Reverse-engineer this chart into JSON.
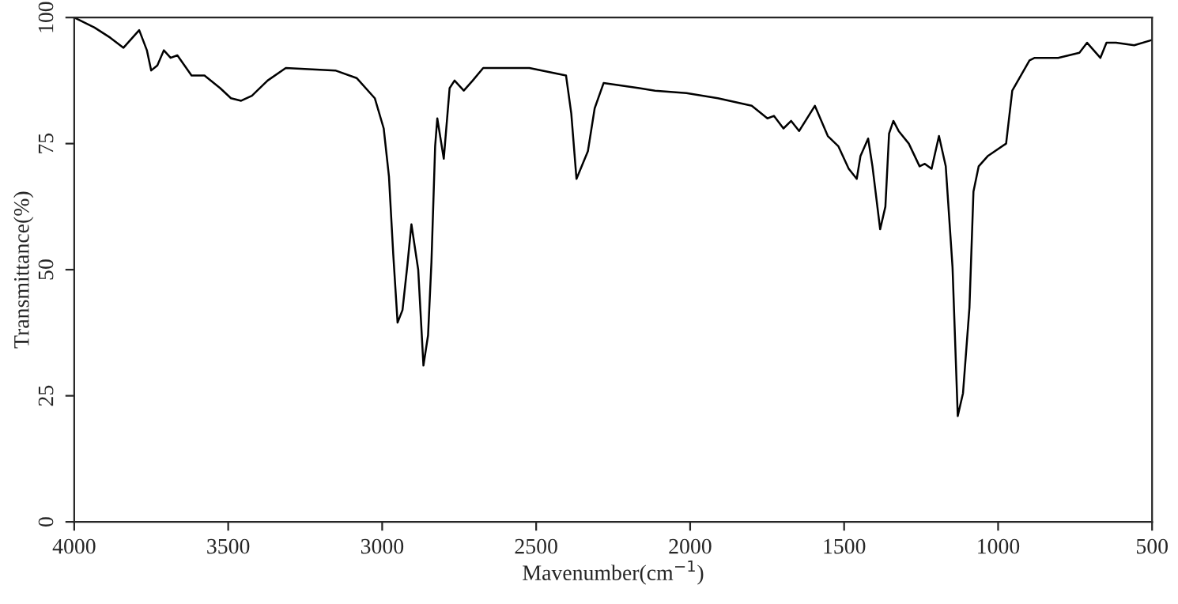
{
  "chart_data": {
    "type": "line",
    "xlabel": "Mavenumber(cm$^{−1}$)",
    "ylabel": "Transmittance(%)",
    "xlim": [
      4000,
      500
    ],
    "ylim": [
      0,
      100
    ],
    "xticks": [
      4000,
      3500,
      3000,
      2500,
      2000,
      1500,
      1000,
      500
    ],
    "yticks": [
      0,
      25,
      50,
      75,
      100
    ],
    "grid": false,
    "legend": false,
    "marker": "none",
    "line_style": "solid",
    "series": [
      {
        "color": "#000000",
        "x": [
          4000,
          3934,
          3883,
          3840,
          3789,
          3764,
          3750,
          3730,
          3709,
          3687,
          3665,
          3619,
          3577,
          3526,
          3491,
          3458,
          3423,
          3372,
          3313,
          3152,
          3083,
          3024,
          2995,
          2978,
          2964,
          2950,
          2934,
          2918,
          2905,
          2883,
          2866,
          2851,
          2840,
          2828,
          2821,
          2800,
          2781,
          2765,
          2735,
          2706,
          2672,
          2522,
          2403,
          2386,
          2369,
          2332,
          2310,
          2281,
          2165,
          2114,
          2012,
          1910,
          1800,
          1749,
          1728,
          1697,
          1672,
          1646,
          1595,
          1553,
          1519,
          1485,
          1459,
          1447,
          1422,
          1408,
          1383,
          1366,
          1354,
          1340,
          1323,
          1290,
          1255,
          1238,
          1216,
          1192,
          1170,
          1148,
          1131,
          1114,
          1093,
          1080,
          1063,
          1034,
          974,
          954,
          898,
          881,
          805,
          736,
          711,
          668,
          648,
          617,
          558,
          503
        ],
        "values": [
          100,
          98,
          96,
          94,
          97.5,
          93.5,
          89.5,
          90.5,
          93.5,
          92,
          92.5,
          88.5,
          88.5,
          86,
          84,
          83.5,
          84.5,
          87.5,
          90,
          89.5,
          88,
          84,
          78,
          68.5,
          53,
          39.5,
          42,
          51,
          59,
          50,
          31,
          37,
          51.5,
          74.5,
          80,
          72,
          86,
          87.5,
          85.5,
          87.5,
          90,
          90,
          88.5,
          81,
          68,
          73.5,
          82,
          87,
          86,
          85.5,
          85,
          84,
          82.5,
          80,
          80.5,
          78,
          79.5,
          77.5,
          82.5,
          76.5,
          74.5,
          70,
          68,
          72.5,
          76,
          70.5,
          58,
          62.5,
          77,
          79.5,
          77.5,
          75,
          70.5,
          71,
          70,
          76.5,
          70.5,
          50.5,
          21,
          25.5,
          42.5,
          65.5,
          70.5,
          72.5,
          75,
          85.5,
          91.5,
          92,
          92,
          93,
          95,
          92,
          95,
          95,
          94.5,
          95.5
        ]
      }
    ]
  }
}
